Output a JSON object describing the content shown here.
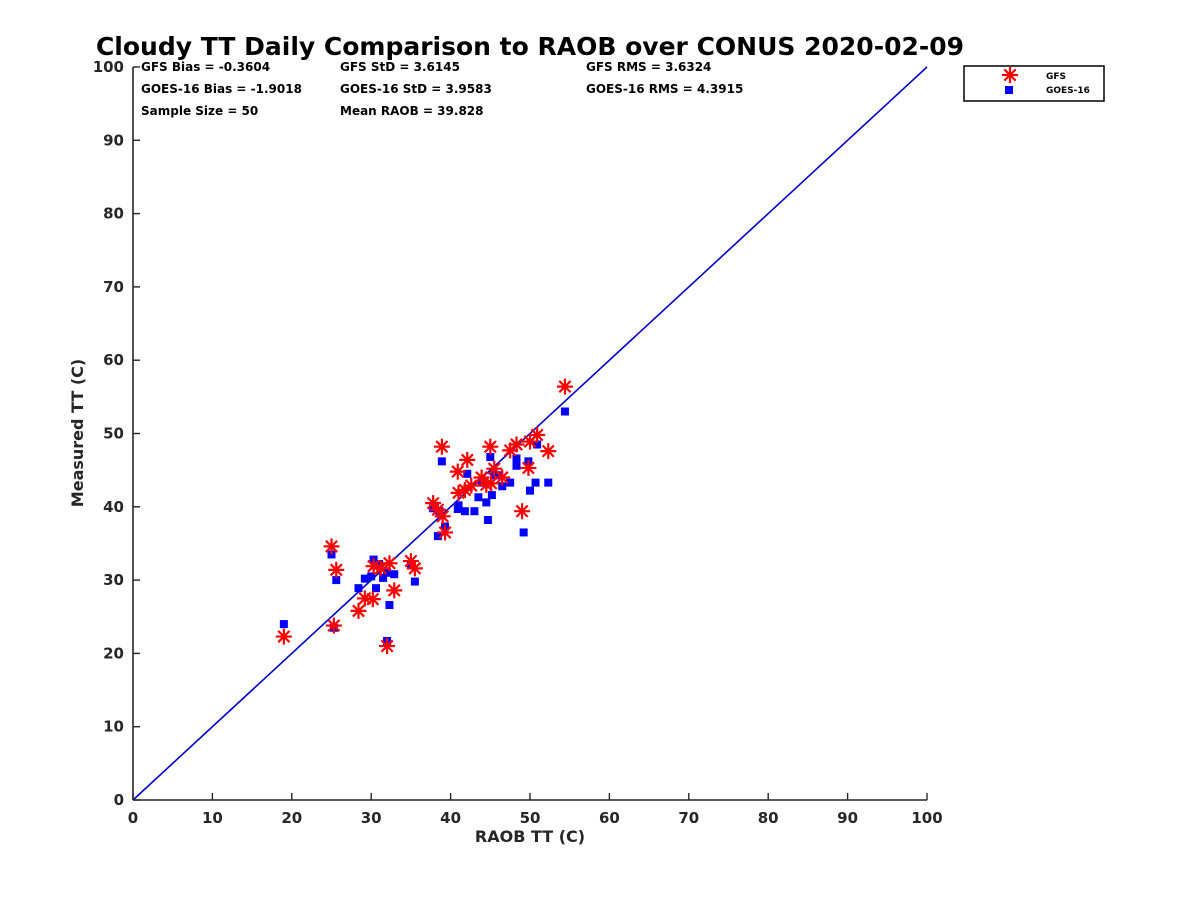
{
  "chart_data": {
    "type": "scatter",
    "title": "Cloudy TT Daily Comparison to RAOB over CONUS 2020-02-09",
    "xlabel": "RAOB TT (C)",
    "ylabel": "Measured TT (C)",
    "xlim": [
      0,
      100
    ],
    "ylim": [
      0,
      100
    ],
    "xticks": [
      "0",
      "10",
      "20",
      "30",
      "40",
      "50",
      "60",
      "70",
      "80",
      "90",
      "100"
    ],
    "yticks": [
      "0",
      "10",
      "20",
      "30",
      "40",
      "50",
      "60",
      "70",
      "80",
      "90",
      "100"
    ],
    "grid": false,
    "legend_position": "top-right, outside plot",
    "reference_line": {
      "from": [
        0,
        0
      ],
      "to": [
        100,
        100
      ],
      "color": "#0000cc"
    },
    "stats": [
      [
        "GFS Bias = -0.3604",
        "GFS StD = 3.6145",
        "GFS RMS = 3.6324"
      ],
      [
        "GOES-16 Bias = -1.9018",
        "GOES-16 StD = 3.9583",
        "GOES-16 RMS = 4.3915"
      ],
      [
        "Sample Size = 50",
        "Mean RAOB = 39.828",
        ""
      ]
    ],
    "series": [
      {
        "name": "GFS",
        "marker": "asterisk",
        "color": "#ff0000",
        "points": [
          [
            19.0,
            22.3
          ],
          [
            25.0,
            34.6
          ],
          [
            25.3,
            23.8
          ],
          [
            25.6,
            31.4
          ],
          [
            28.4,
            25.8
          ],
          [
            29.2,
            27.5
          ],
          [
            30.2,
            27.4
          ],
          [
            30.3,
            31.9
          ],
          [
            31.2,
            31.6
          ],
          [
            32.0,
            21.0
          ],
          [
            32.3,
            32.3
          ],
          [
            32.9,
            28.6
          ],
          [
            35.0,
            32.6
          ],
          [
            35.5,
            31.6
          ],
          [
            37.8,
            40.5
          ],
          [
            38.4,
            39.6
          ],
          [
            38.9,
            48.2
          ],
          [
            39.0,
            38.7
          ],
          [
            39.3,
            36.5
          ],
          [
            40.9,
            44.8
          ],
          [
            41.0,
            41.9
          ],
          [
            41.8,
            42.3
          ],
          [
            42.1,
            46.4
          ],
          [
            42.6,
            42.9
          ],
          [
            43.9,
            44.0
          ],
          [
            44.5,
            43.0
          ],
          [
            45.0,
            48.2
          ],
          [
            45.1,
            43.2
          ],
          [
            45.5,
            45.2
          ],
          [
            46.5,
            44.0
          ],
          [
            47.5,
            47.7
          ],
          [
            48.3,
            48.5
          ],
          [
            49.0,
            39.4
          ],
          [
            49.8,
            45.3
          ],
          [
            50.0,
            48.9
          ],
          [
            50.9,
            49.8
          ],
          [
            52.3,
            47.6
          ],
          [
            54.4,
            56.4
          ]
        ]
      },
      {
        "name": "GOES-16",
        "marker": "square",
        "color": "#0000ff",
        "points": [
          [
            19.0,
            24.0
          ],
          [
            25.0,
            33.5
          ],
          [
            25.3,
            23.5
          ],
          [
            25.6,
            30.0
          ],
          [
            28.4,
            28.9
          ],
          [
            29.2,
            30.2
          ],
          [
            30.0,
            30.5
          ],
          [
            30.3,
            32.8
          ],
          [
            30.6,
            28.9
          ],
          [
            31.0,
            32.2
          ],
          [
            31.5,
            30.3
          ],
          [
            32.0,
            21.7
          ],
          [
            32.0,
            31.0
          ],
          [
            32.3,
            26.6
          ],
          [
            32.9,
            30.8
          ],
          [
            35.0,
            32.0
          ],
          [
            35.5,
            29.8
          ],
          [
            37.8,
            39.8
          ],
          [
            38.4,
            36.0
          ],
          [
            38.6,
            39.4
          ],
          [
            38.9,
            46.2
          ],
          [
            39.3,
            37.3
          ],
          [
            40.9,
            39.7
          ],
          [
            41.0,
            40.2
          ],
          [
            41.8,
            39.4
          ],
          [
            42.1,
            44.5
          ],
          [
            43.0,
            39.4
          ],
          [
            43.5,
            41.3
          ],
          [
            43.9,
            43.3
          ],
          [
            44.5,
            40.6
          ],
          [
            44.7,
            38.2
          ],
          [
            45.0,
            46.8
          ],
          [
            45.2,
            41.6
          ],
          [
            45.5,
            44.3
          ],
          [
            46.0,
            44.3
          ],
          [
            46.5,
            42.8
          ],
          [
            47.5,
            43.3
          ],
          [
            48.3,
            45.6
          ],
          [
            48.3,
            46.6
          ],
          [
            49.2,
            36.5
          ],
          [
            49.8,
            46.2
          ],
          [
            50.0,
            42.2
          ],
          [
            50.7,
            43.3
          ],
          [
            50.9,
            48.5
          ],
          [
            52.3,
            43.3
          ],
          [
            54.4,
            53.0
          ]
        ]
      }
    ]
  }
}
